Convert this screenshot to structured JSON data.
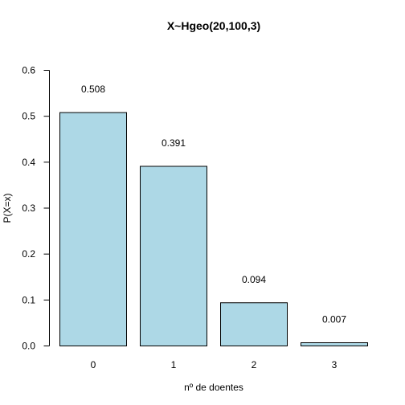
{
  "chart_data": {
    "type": "bar",
    "title": "X~Hgeo(20,100,3)",
    "xlabel": "nº de doentes",
    "ylabel": "P(X=x)",
    "categories": [
      "0",
      "1",
      "2",
      "3"
    ],
    "values": [
      0.508,
      0.391,
      0.094,
      0.007
    ],
    "value_labels": [
      "0.508",
      "0.391",
      "0.094",
      "0.007"
    ],
    "ylim": [
      0,
      0.6
    ],
    "yticks": [
      0.0,
      0.1,
      0.2,
      0.3,
      0.4,
      0.5,
      0.6
    ],
    "ytick_labels": [
      "0.0",
      "0.1",
      "0.2",
      "0.3",
      "0.4",
      "0.5",
      "0.6"
    ],
    "bar_color": "#ADD8E6",
    "grid": false
  }
}
